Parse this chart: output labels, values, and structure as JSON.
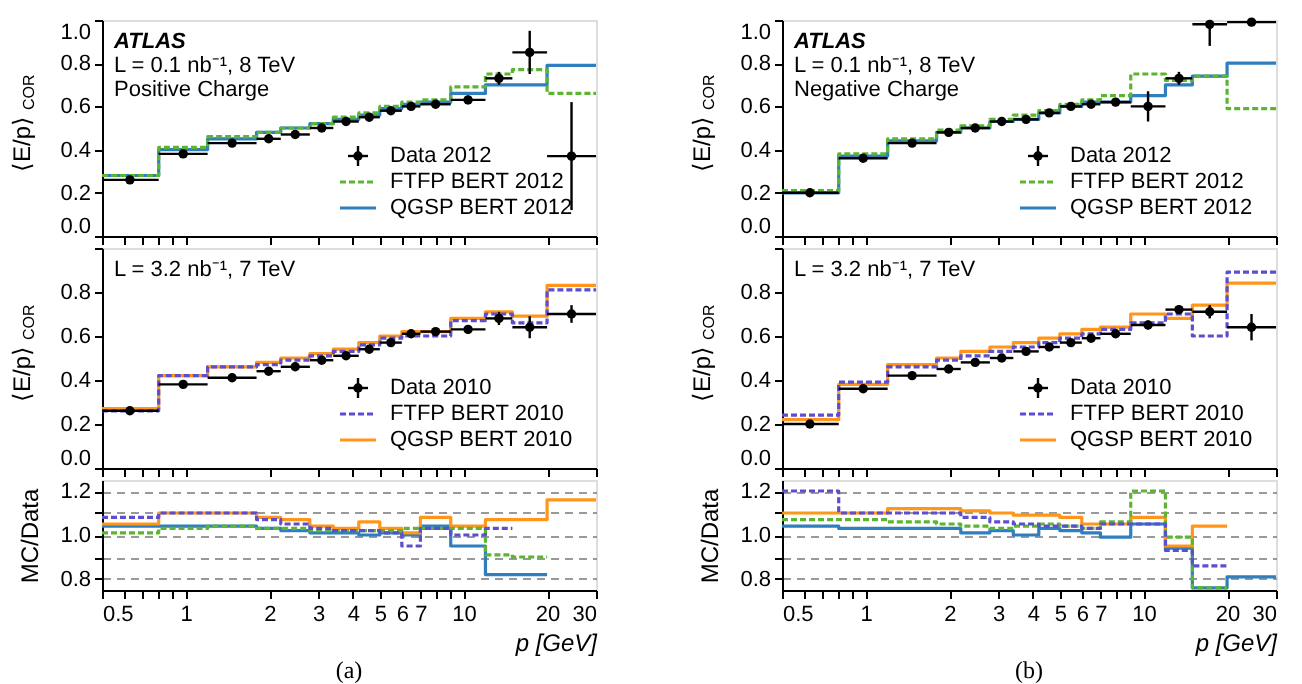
{
  "chart_data": [
    {
      "type": "step",
      "ylabel": "⟨E/p⟩$_{COR}$",
      "log": "x",
      "xlim": [
        0.5,
        30
      ],
      "xticks": [
        0.5,
        {
          "value": 0.6,
          "label": null
        },
        {
          "value": 0.7,
          "label": null
        },
        {
          "value": 0.8,
          "label": null
        },
        {
          "value": 0.9,
          "label": null
        },
        1,
        2,
        3,
        4,
        5,
        6,
        7,
        {
          "value": 8,
          "label": null
        },
        {
          "value": 9,
          "label": null
        },
        10,
        20,
        30
      ],
      "ylim": [
        0.0,
        1.0
      ],
      "yticks": [
        {
          "value": 0,
          "label": "0.0"
        },
        0.2,
        0.4,
        0.6,
        0.8,
        {
          "value": 1,
          "label": "1.0"
        }
      ],
      "tick_labels": "y",
      "legend": "bottom right",
      "annotations": [
        "ATLAS",
        "L = 0.1 nb⁻¹, 8 TeV",
        "Positive Charge"
      ],
      "series": [
        {
          "name": "Data 2012",
          "type": "scatter",
          "marker": "circle",
          "color": "#000000",
          "x": [
            0.63,
            0.98,
            1.47,
            1.99,
            2.48,
            3.09,
            3.78,
            4.58,
            5.48,
            6.48,
            7.94,
            10.39,
            13.42,
            17.32,
            24.49
          ],
          "values": [
            0.26,
            0.38,
            0.43,
            0.45,
            0.47,
            0.5,
            0.53,
            0.55,
            0.58,
            0.6,
            0.61,
            0.63,
            0.73,
            0.85,
            0.37
          ],
          "errors": [
            0.01,
            0.01,
            0.01,
            0.01,
            0.01,
            0.01,
            0.01,
            0.01,
            0.01,
            0.01,
            0.01,
            0.02,
            0.03,
            0.1,
            0.25
          ],
          "xerrors": [
            [
              0.5,
              0.8
            ],
            [
              0.8,
              1.2
            ],
            [
              1.2,
              1.8
            ],
            [
              1.8,
              2.2
            ],
            [
              2.2,
              2.8
            ],
            [
              2.8,
              3.4
            ],
            [
              3.4,
              4.2
            ],
            [
              4.2,
              5
            ],
            [
              5,
              6
            ],
            [
              6,
              7
            ],
            [
              7,
              9
            ],
            [
              9,
              12
            ],
            [
              12,
              15
            ],
            [
              15,
              20
            ],
            [
              20,
              30
            ]
          ]
        },
        {
          "name": "FTFP BERT 2012",
          "line_style": "dashed",
          "color": "#5cb531",
          "x": [
            0.5,
            0.8,
            1.2,
            1.8,
            2.2,
            2.8,
            3.4,
            4.2,
            5,
            6,
            7,
            9,
            12,
            15,
            20,
            30
          ],
          "values": [
            0.28,
            0.41,
            0.46,
            0.48,
            0.5,
            0.52,
            0.55,
            0.57,
            0.6,
            0.62,
            0.63,
            0.69,
            0.75,
            0.77,
            0.66,
            0.66
          ]
        },
        {
          "name": "QGSP BERT 2012",
          "line_style": "solid",
          "color": "#2f7fbf",
          "x": [
            0.5,
            0.8,
            1.2,
            1.8,
            2.2,
            2.8,
            3.4,
            4.2,
            5,
            6,
            7,
            9,
            12,
            15,
            20,
            30
          ],
          "values": [
            0.28,
            0.4,
            0.45,
            0.48,
            0.5,
            0.52,
            0.54,
            0.56,
            0.59,
            0.61,
            0.62,
            0.66,
            0.7,
            0.7,
            0.79,
            0.79
          ]
        }
      ]
    },
    {
      "type": "step",
      "ylabel": "⟨E/p⟩$_{COR}$",
      "log": "x",
      "xlim": [
        0.5,
        30
      ],
      "xticks": [
        0.5,
        {
          "value": 0.6,
          "label": null
        },
        {
          "value": 0.7,
          "label": null
        },
        {
          "value": 0.8,
          "label": null
        },
        {
          "value": 0.9,
          "label": null
        },
        1,
        2,
        3,
        4,
        5,
        6,
        7,
        {
          "value": 8,
          "label": null
        },
        {
          "value": 9,
          "label": null
        },
        10,
        20,
        30
      ],
      "ylim": [
        0.0,
        1.0
      ],
      "yticks": [
        {
          "value": 0,
          "label": "0.0"
        },
        0.2,
        0.4,
        0.6,
        0.8,
        {
          "value": 1,
          "label": null
        }
      ],
      "tick_labels": "y",
      "legend": "bottom right",
      "annotations": [
        "L = 3.2 nb⁻¹, 7 TeV"
      ],
      "series": [
        {
          "name": "Data 2010",
          "type": "scatter",
          "marker": "circle",
          "color": "#000000",
          "x": [
            0.63,
            0.98,
            1.47,
            1.99,
            2.48,
            3.09,
            3.78,
            4.58,
            5.48,
            6.48,
            7.94,
            10.39,
            13.42,
            17.32,
            24.49
          ],
          "values": [
            0.26,
            0.38,
            0.41,
            0.44,
            0.46,
            0.49,
            0.51,
            0.54,
            0.57,
            0.61,
            0.62,
            0.63,
            0.68,
            0.64,
            0.7
          ],
          "errors": [
            0.01,
            0.01,
            0.01,
            0.01,
            0.01,
            0.01,
            0.01,
            0.01,
            0.01,
            0.01,
            0.01,
            0.02,
            0.03,
            0.05,
            0.04
          ],
          "xerrors": [
            [
              0.5,
              0.8
            ],
            [
              0.8,
              1.2
            ],
            [
              1.2,
              1.8
            ],
            [
              1.8,
              2.2
            ],
            [
              2.2,
              2.8
            ],
            [
              2.8,
              3.4
            ],
            [
              3.4,
              4.2
            ],
            [
              4.2,
              5
            ],
            [
              5,
              6
            ],
            [
              6,
              7
            ],
            [
              7,
              9
            ],
            [
              9,
              12
            ],
            [
              12,
              15
            ],
            [
              15,
              20
            ],
            [
              20,
              30
            ]
          ]
        },
        {
          "name": "FTFP BERT 2010",
          "line_style": "dashed",
          "color": "#5b4fd0",
          "x": [
            0.5,
            0.8,
            1.2,
            1.8,
            2.2,
            2.8,
            3.4,
            4.2,
            5,
            6,
            7,
            9,
            12,
            15,
            20,
            30
          ],
          "values": [
            0.26,
            0.42,
            0.46,
            0.47,
            0.49,
            0.51,
            0.53,
            0.56,
            0.59,
            0.6,
            0.6,
            0.67,
            0.7,
            0.66,
            0.81,
            0.81
          ]
        },
        {
          "name": "QGSP BERT 2010",
          "line_style": "solid",
          "color": "#ff9619",
          "x": [
            0.5,
            0.8,
            1.2,
            1.8,
            2.2,
            2.8,
            3.4,
            4.2,
            5,
            6,
            7,
            9,
            12,
            15,
            20,
            30
          ],
          "values": [
            0.27,
            0.42,
            0.46,
            0.48,
            0.5,
            0.52,
            0.54,
            0.57,
            0.6,
            0.62,
            0.62,
            0.68,
            0.71,
            0.69,
            0.83,
            0.83
          ]
        }
      ]
    },
    {
      "type": "step",
      "ylabel": "MC/Data",
      "xlabel": "p [GeV]",
      "log": "x",
      "grid": "y",
      "xlim": [
        0.5,
        30
      ],
      "xticks": [
        0.5,
        {
          "value": 0.6,
          "label": null
        },
        {
          "value": 0.7,
          "label": null
        },
        {
          "value": 0.8,
          "label": null
        },
        {
          "value": 0.9,
          "label": null
        },
        1,
        2,
        3,
        4,
        5,
        6,
        7,
        {
          "value": 8,
          "label": null
        },
        {
          "value": 9,
          "label": null
        },
        10,
        20,
        30
      ],
      "ylim": [
        0.75,
        1.25
      ],
      "yticks": [
        0.8,
        {
          "value": 0.9,
          "label": null
        },
        {
          "value": 1,
          "label": "1.0"
        },
        {
          "value": 1.1,
          "label": null
        },
        1.2
      ],
      "annotations": [
        "(a)"
      ],
      "series": [
        {
          "line_style": "dashed",
          "color": "#5cb531",
          "x": [
            0.5,
            0.8,
            1.2,
            1.8,
            2.2,
            2.8,
            3.4,
            4.2,
            5,
            6,
            7,
            9,
            12,
            15,
            20
          ],
          "values": [
            1.01,
            1.03,
            1.04,
            1.03,
            1.03,
            1.02,
            1.02,
            1.02,
            1.02,
            1.03,
            1.03,
            1.03,
            0.91,
            0.9,
            0.9
          ]
        },
        {
          "line_style": "solid",
          "color": "#2f7fbf",
          "x": [
            0.5,
            0.8,
            1.2,
            1.8,
            2.2,
            2.8,
            3.4,
            4.2,
            5,
            6,
            7,
            9,
            12,
            15,
            20
          ],
          "values": [
            1.04,
            1.04,
            1.04,
            1.03,
            1.02,
            1.01,
            1.01,
            1.0,
            1.01,
            1.0,
            1.04,
            0.95,
            0.82,
            0.82,
            0.82
          ]
        },
        {
          "line_style": "dashed",
          "color": "#5b4fd0",
          "x": [
            0.5,
            0.8,
            1.2,
            1.8,
            2.2,
            2.8,
            3.4,
            4.2,
            5,
            6,
            7,
            9,
            12,
            15
          ],
          "values": [
            1.08,
            1.1,
            1.1,
            1.07,
            1.05,
            1.03,
            1.02,
            1.02,
            1.01,
            0.95,
            1.03,
            1.0,
            1.03,
            1.03
          ]
        },
        {
          "line_style": "solid",
          "color": "#ff9619",
          "x": [
            0.5,
            0.8,
            1.2,
            1.8,
            2.2,
            2.8,
            3.4,
            4.2,
            5,
            6,
            7,
            9,
            12,
            15,
            20,
            30
          ],
          "values": [
            1.05,
            1.1,
            1.1,
            1.08,
            1.07,
            1.04,
            1.03,
            1.06,
            1.03,
            1.01,
            1.08,
            1.04,
            1.07,
            null,
            1.16,
            1.16
          ]
        }
      ]
    },
    {
      "type": "step",
      "ylabel": "⟨E/p⟩$_{COR}$",
      "log": "x",
      "xlim": [
        0.5,
        30
      ],
      "xticks": [
        0.5,
        {
          "value": 0.6,
          "label": null
        },
        {
          "value": 0.7,
          "label": null
        },
        {
          "value": 0.8,
          "label": null
        },
        {
          "value": 0.9,
          "label": null
        },
        1,
        2,
        3,
        4,
        5,
        6,
        7,
        {
          "value": 8,
          "label": null
        },
        {
          "value": 9,
          "label": null
        },
        10,
        20,
        30
      ],
      "ylim": [
        0.0,
        1.0
      ],
      "yticks": [
        {
          "value": 0,
          "label": "0.0"
        },
        0.2,
        0.4,
        0.6,
        0.8,
        {
          "value": 1,
          "label": "1.0"
        }
      ],
      "tick_labels": "y",
      "legend": "bottom right",
      "annotations": [
        "ATLAS",
        "L = 0.1 nb⁻¹, 8 TeV",
        "Negative Charge"
      ],
      "series": [
        {
          "name": "Data 2012",
          "type": "scatter",
          "marker": "circle",
          "color": "#000000",
          "x": [
            0.63,
            0.98,
            1.47,
            1.99,
            2.48,
            3.09,
            3.78,
            4.58,
            5.48,
            6.48,
            7.94,
            10.39,
            13.42,
            17.32,
            24.49
          ],
          "values": [
            0.2,
            0.36,
            0.43,
            0.48,
            0.5,
            0.53,
            0.54,
            0.57,
            0.6,
            0.61,
            0.62,
            0.6,
            0.73,
            0.98,
            0.99
          ],
          "errors": [
            0.01,
            0.01,
            0.01,
            0.01,
            0.01,
            0.01,
            0.01,
            0.01,
            0.01,
            0.01,
            0.01,
            0.07,
            0.03,
            [
              0.88,
              1.0
            ],
            0.01
          ],
          "xerrors": [
            [
              0.5,
              0.8
            ],
            [
              0.8,
              1.2
            ],
            [
              1.2,
              1.8
            ],
            [
              1.8,
              2.2
            ],
            [
              2.2,
              2.8
            ],
            [
              2.8,
              3.4
            ],
            [
              3.4,
              4.2
            ],
            [
              4.2,
              5
            ],
            [
              5,
              6
            ],
            [
              6,
              7
            ],
            [
              7,
              9
            ],
            [
              9,
              12
            ],
            [
              12,
              15
            ],
            [
              15,
              20
            ],
            [
              20,
              30
            ]
          ]
        },
        {
          "name": "FTFP BERT 2012",
          "line_style": "dashed",
          "color": "#5cb531",
          "x": [
            0.5,
            0.8,
            1.2,
            1.8,
            2.2,
            2.8,
            3.4,
            4.2,
            5,
            6,
            7,
            9,
            12,
            15,
            20,
            30
          ],
          "values": [
            0.21,
            0.38,
            0.45,
            0.49,
            0.51,
            0.54,
            0.56,
            0.58,
            0.61,
            0.63,
            0.65,
            0.75,
            0.72,
            0.74,
            0.59,
            0.59
          ]
        },
        {
          "name": "QGSP BERT 2012",
          "line_style": "solid",
          "color": "#2f7fbf",
          "x": [
            0.5,
            0.8,
            1.2,
            1.8,
            2.2,
            2.8,
            3.4,
            4.2,
            5,
            6,
            7,
            9,
            12,
            15,
            20,
            30
          ],
          "values": [
            0.2,
            0.37,
            0.44,
            0.48,
            0.5,
            0.53,
            0.54,
            0.57,
            0.6,
            0.62,
            0.62,
            0.65,
            0.7,
            0.74,
            0.8,
            0.8
          ]
        }
      ]
    },
    {
      "type": "step",
      "ylabel": "⟨E/p⟩$_{COR}$",
      "log": "x",
      "xlim": [
        0.5,
        30
      ],
      "xticks": [
        0.5,
        {
          "value": 0.6,
          "label": null
        },
        {
          "value": 0.7,
          "label": null
        },
        {
          "value": 0.8,
          "label": null
        },
        {
          "value": 0.9,
          "label": null
        },
        1,
        2,
        3,
        4,
        5,
        6,
        7,
        {
          "value": 8,
          "label": null
        },
        {
          "value": 9,
          "label": null
        },
        10,
        20,
        30
      ],
      "ylim": [
        0.0,
        1.0
      ],
      "yticks": [
        {
          "value": 0,
          "label": "0.0"
        },
        0.2,
        0.4,
        0.6,
        0.8,
        {
          "value": 1,
          "label": null
        }
      ],
      "tick_labels": "y",
      "legend": "bottom right",
      "annotations": [
        "L = 3.2 nb⁻¹, 7 TeV"
      ],
      "series": [
        {
          "name": "Data 2010",
          "type": "scatter",
          "marker": "circle",
          "color": "#000000",
          "x": [
            0.63,
            0.98,
            1.47,
            1.99,
            2.48,
            3.09,
            3.78,
            4.58,
            5.48,
            6.48,
            7.94,
            10.39,
            13.42,
            17.32,
            24.49
          ],
          "values": [
            0.2,
            0.36,
            0.42,
            0.45,
            0.48,
            0.5,
            0.53,
            0.55,
            0.57,
            0.59,
            0.61,
            0.65,
            0.72,
            0.71,
            0.64
          ],
          "errors": [
            0.01,
            0.01,
            0.01,
            0.01,
            0.01,
            0.01,
            0.01,
            0.01,
            0.01,
            0.01,
            0.01,
            0.02,
            0.02,
            0.03,
            0.06
          ],
          "xerrors": [
            [
              0.5,
              0.8
            ],
            [
              0.8,
              1.2
            ],
            [
              1.2,
              1.8
            ],
            [
              1.8,
              2.2
            ],
            [
              2.2,
              2.8
            ],
            [
              2.8,
              3.4
            ],
            [
              3.4,
              4.2
            ],
            [
              4.2,
              5
            ],
            [
              5,
              6
            ],
            [
              6,
              7
            ],
            [
              7,
              9
            ],
            [
              9,
              12
            ],
            [
              12,
              15
            ],
            [
              15,
              20
            ],
            [
              20,
              30
            ]
          ]
        },
        {
          "name": "FTFP BERT 2010",
          "line_style": "dashed",
          "color": "#5b4fd0",
          "x": [
            0.5,
            0.8,
            1.2,
            1.8,
            2.2,
            2.8,
            3.4,
            4.2,
            5,
            6,
            7,
            9,
            12,
            15,
            20,
            30
          ],
          "values": [
            0.24,
            0.39,
            0.46,
            0.49,
            0.51,
            0.53,
            0.55,
            0.57,
            0.59,
            0.61,
            0.63,
            0.66,
            0.7,
            0.6,
            0.89,
            0.89
          ]
        },
        {
          "name": "QGSP BERT 2010",
          "line_style": "solid",
          "color": "#ff9619",
          "x": [
            0.5,
            0.8,
            1.2,
            1.8,
            2.2,
            2.8,
            3.4,
            4.2,
            5,
            6,
            7,
            9,
            12,
            15,
            20,
            30
          ],
          "values": [
            0.22,
            0.38,
            0.47,
            0.5,
            0.53,
            0.55,
            0.57,
            0.59,
            0.61,
            0.63,
            0.64,
            0.7,
            0.68,
            0.74,
            0.84,
            0.84
          ]
        }
      ]
    },
    {
      "type": "step",
      "ylabel": "MC/Data",
      "xlabel": "p [GeV]",
      "log": "x",
      "grid": "y",
      "xlim": [
        0.5,
        30
      ],
      "xticks": [
        0.5,
        {
          "value": 0.6,
          "label": null
        },
        {
          "value": 0.7,
          "label": null
        },
        {
          "value": 0.8,
          "label": null
        },
        {
          "value": 0.9,
          "label": null
        },
        1,
        2,
        3,
        4,
        5,
        6,
        7,
        {
          "value": 8,
          "label": null
        },
        {
          "value": 9,
          "label": null
        },
        10,
        20,
        30
      ],
      "ylim": [
        0.75,
        1.25
      ],
      "yticks": [
        0.8,
        {
          "value": 0.9,
          "label": null
        },
        {
          "value": 1,
          "label": "1.0"
        },
        {
          "value": 1.1,
          "label": null
        },
        1.2
      ],
      "annotations": [
        "(b)"
      ],
      "series": [
        {
          "line_style": "dashed",
          "color": "#5cb531",
          "x": [
            0.5,
            0.8,
            1.2,
            1.8,
            2.2,
            2.8,
            3.4,
            4.2,
            5,
            6,
            7,
            9,
            12,
            15,
            20
          ],
          "values": [
            1.07,
            1.07,
            1.06,
            1.05,
            1.04,
            1.03,
            1.04,
            1.05,
            1.04,
            1.03,
            1.06,
            1.2,
            0.99,
            0.76,
            0.76
          ]
        },
        {
          "line_style": "solid",
          "color": "#2f7fbf",
          "x": [
            0.5,
            0.8,
            1.2,
            1.8,
            2.2,
            2.8,
            3.4,
            4.2,
            5,
            6,
            7,
            9,
            12,
            15,
            20,
            30
          ],
          "values": [
            1.04,
            1.03,
            1.03,
            1.03,
            1.01,
            1.02,
            1.0,
            1.03,
            1.02,
            1.01,
            0.99,
            1.05,
            0.94,
            0.76,
            0.81,
            0.81
          ]
        },
        {
          "line_style": "dashed",
          "color": "#5b4fd0",
          "x": [
            0.5,
            0.8,
            1.2,
            1.8,
            2.2,
            2.8,
            3.4,
            4.2,
            5,
            6,
            7,
            9,
            12,
            15,
            20
          ],
          "values": [
            1.2,
            1.1,
            1.1,
            1.1,
            1.08,
            1.06,
            1.05,
            1.04,
            1.04,
            1.03,
            1.05,
            1.05,
            0.93,
            0.86,
            0.86
          ]
        },
        {
          "line_style": "solid",
          "color": "#ff9619",
          "x": [
            0.5,
            0.8,
            1.2,
            1.8,
            2.2,
            2.8,
            3.4,
            4.2,
            5,
            6,
            7,
            9,
            12,
            15,
            20
          ],
          "values": [
            1.1,
            1.1,
            1.12,
            1.12,
            1.11,
            1.1,
            1.09,
            1.09,
            1.08,
            1.05,
            1.05,
            1.08,
            0.95,
            1.04,
            1.04
          ]
        }
      ]
    }
  ]
}
